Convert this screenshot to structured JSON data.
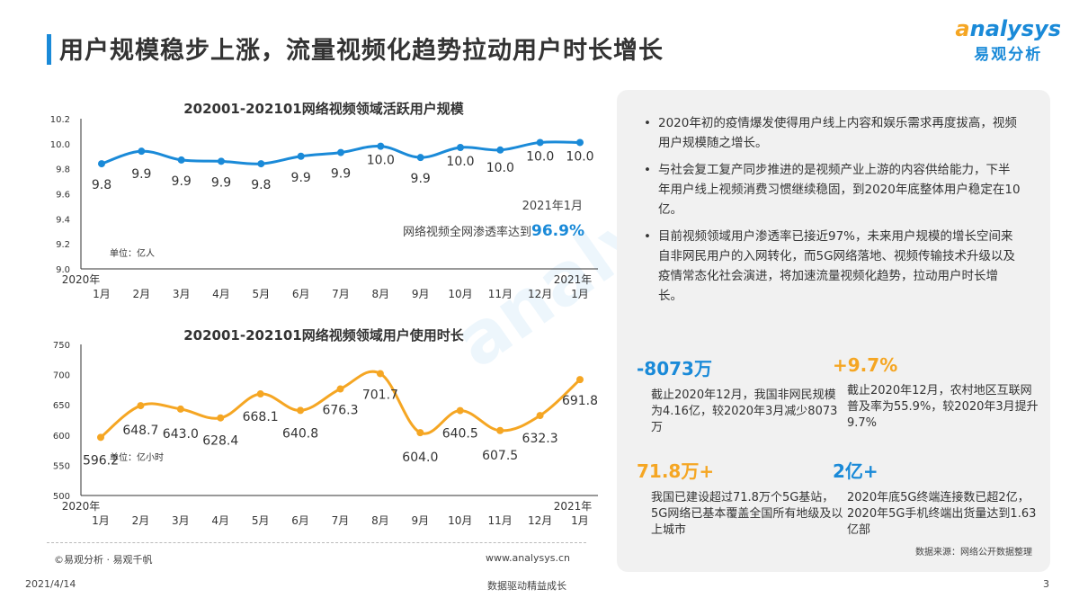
{
  "header": {
    "title": "用户规模稳步上涨，流量视频化趋势拉动用户时长增长"
  },
  "logo": {
    "en": "analysys",
    "cn": "易观分析"
  },
  "watermark": "analysys 易观分析",
  "colors": {
    "blue": "#1a8ad8",
    "orange": "#f5a623"
  },
  "chart_data": [
    {
      "type": "line",
      "title": "202001-202101网络视频领域活跃用户规模",
      "unit": "单位：亿人",
      "categories": [
        "1月",
        "2月",
        "3月",
        "4月",
        "5月",
        "6月",
        "7月",
        "8月",
        "9月",
        "10月",
        "11月",
        "12月",
        "1月"
      ],
      "year_labels": [
        "2020年",
        "2021年"
      ],
      "values": [
        9.84,
        9.94,
        9.87,
        9.86,
        9.84,
        9.9,
        9.93,
        9.98,
        9.89,
        9.97,
        9.95,
        10.01,
        10.01
      ],
      "labels": [
        "9.8",
        "9.9",
        "9.9",
        "9.9",
        "9.8",
        "9.9",
        "9.9",
        "10.0",
        "9.9",
        "10.0",
        "10.0",
        "10.0",
        "10.0"
      ],
      "ylim": [
        9.0,
        10.2
      ],
      "yticks": [
        "9.0",
        "9.2",
        "9.4",
        "9.6",
        "9.8",
        "10.0",
        "10.2"
      ],
      "color": "#1a8ad8",
      "annotation": {
        "line1": "2021年1月",
        "line2": "网络视频全网渗透率达到",
        "highlight": "96.9%"
      }
    },
    {
      "type": "line",
      "title": "202001-202101网络视频领域用户使用时长",
      "unit": "单位：亿小时",
      "categories": [
        "1月",
        "2月",
        "3月",
        "4月",
        "5月",
        "6月",
        "7月",
        "8月",
        "9月",
        "10月",
        "11月",
        "12月",
        "1月"
      ],
      "year_labels": [
        "2020年",
        "2021年"
      ],
      "values": [
        596.2,
        648.7,
        643.0,
        628.4,
        668.1,
        640.8,
        676.3,
        701.7,
        604.0,
        640.5,
        607.5,
        632.3,
        691.8
      ],
      "labels": [
        "596.2",
        "648.7",
        "643.0",
        "628.4",
        "668.1",
        "640.8",
        "676.3",
        "701.7",
        "604.0",
        "640.5",
        "607.5",
        "632.3",
        "691.8"
      ],
      "ylim": [
        500,
        750
      ],
      "yticks": [
        "500",
        "550",
        "600",
        "650",
        "700",
        "750"
      ],
      "color": "#f5a623"
    }
  ],
  "panel": {
    "bullets": [
      "2020年初的疫情爆发使得用户线上内容和娱乐需求再度拔高，视频用户规模随之增长。",
      "与社会复工复产同步推进的是视频产业上游的内容供给能力，下半年用户线上视频消费习惯继续稳固，到2020年底整体用户稳定在10亿。",
      "目前视频领域用户渗透率已接近97%，未来用户规模的增长空间来自非网民用户的入网转化，而5G网络落地、视频传输技术升级以及疫情常态化社会演进，将加速流量视频化趋势，拉动用户时长增长。"
    ],
    "stats": [
      {
        "big": "-8073万",
        "desc": "截止2020年12月，我国非网民规模为4.16亿，较2020年3月减少8073万",
        "color": "#1a8ad8"
      },
      {
        "big": "+9.7%",
        "desc": "截止2020年12月，农村地区互联网普及率为55.9%，较2020年3月提升9.7%",
        "color": "#f5a623"
      },
      {
        "big": "71.8万+",
        "desc": "我国已建设超过71.8万个5G基站，5G网络已基本覆盖全国所有地级及以上城市",
        "color": "#f5a623"
      },
      {
        "big": "2亿+",
        "desc": "2020年底5G终端连接数已超2亿，2020年5G手机终端出货量达到1.63亿部",
        "color": "#1a8ad8"
      }
    ],
    "source": "数据来源：网络公开数据整理"
  },
  "footer": {
    "copyright": "©易观分析 · 易观千帆",
    "url": "www.analysys.cn",
    "date": "2021/4/14",
    "slogan": "数据驱动精益成长",
    "page": "3"
  }
}
